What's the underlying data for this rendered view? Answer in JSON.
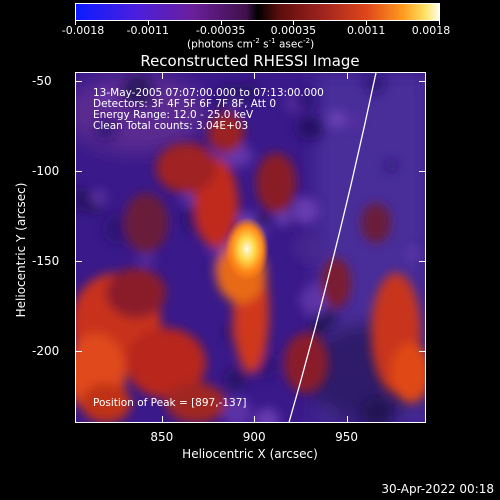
{
  "colorbar": {
    "tick_labels": [
      "-0.0018",
      "-0.0011",
      "-0.00035",
      "0.00035",
      "0.0011",
      "0.0018"
    ],
    "units_prefix": "(photons cm",
    "units_exp1": "-2",
    "units_mid1": " s",
    "units_exp2": "-1",
    "units_mid2": " asec",
    "units_exp3": "-2",
    "units_suffix": ")"
  },
  "plot": {
    "title": "Reconstructed RHESSI Image",
    "xlabel": "Heliocentric X (arcsec)",
    "ylabel": "Heliocentric Y (arcsec)",
    "xticks": [
      "850",
      "900",
      "950"
    ],
    "yticks": [
      "-50",
      "-100",
      "-150",
      "-200"
    ],
    "annotations": {
      "time_range": "13-May-2005 07:07:00.000 to 07:13:00.000",
      "detectors": "Detectors: 3F 4F 5F 6F 7F 8F, Att 0",
      "energy": "Energy Range: 12.0 - 25.0 keV",
      "clean": "Clean     Total counts: 3.04E+03",
      "peak": "Position of Peak = [897,-137]"
    }
  },
  "chart_data": {
    "type": "heatmap",
    "title": "Reconstructed RHESSI Image",
    "xlabel": "Heliocentric X (arcsec)",
    "ylabel": "Heliocentric Y (arcsec)",
    "xlim": [
      803,
      993
    ],
    "ylim": [
      -240,
      -45
    ],
    "colorbar_range": [
      -0.0018,
      0.0018
    ],
    "peak_position": [
      897,
      -137
    ],
    "limb_color": "#ffffff"
  },
  "footer": {
    "timestamp": "30-Apr-2022 00:18"
  }
}
